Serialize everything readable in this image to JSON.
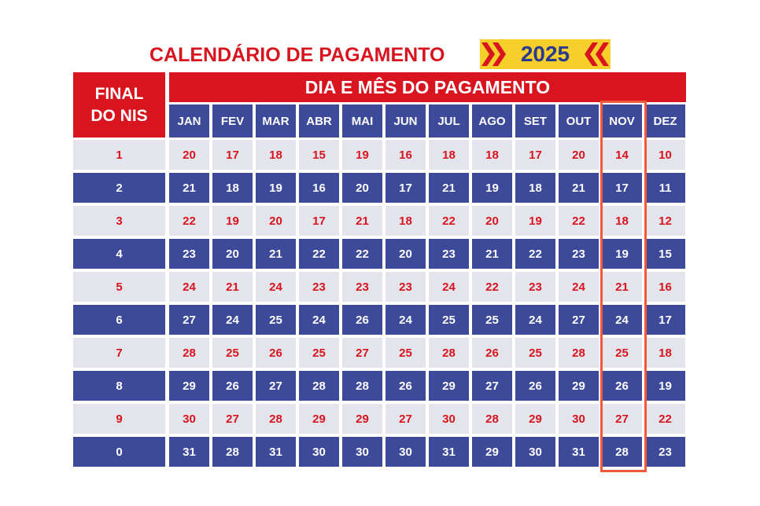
{
  "header": {
    "title": "CALENDÁRIO DE PAGAMENTO",
    "year": "2025"
  },
  "table": {
    "corner": "FINAL DO NIS",
    "group_header": "DIA E MÊS DO PAGAMENTO",
    "months": [
      "JAN",
      "FEV",
      "MAR",
      "ABR",
      "MAI",
      "JUN",
      "JUL",
      "AGO",
      "SET",
      "OUT",
      "NOV",
      "DEZ"
    ],
    "rows": [
      [
        1,
        20,
        17,
        18,
        15,
        19,
        16,
        18,
        18,
        17,
        20,
        14,
        10
      ],
      [
        2,
        21,
        18,
        19,
        16,
        20,
        17,
        21,
        19,
        18,
        21,
        17,
        11
      ],
      [
        3,
        22,
        19,
        20,
        17,
        21,
        18,
        22,
        20,
        19,
        22,
        18,
        12
      ],
      [
        4,
        23,
        20,
        21,
        22,
        22,
        20,
        23,
        21,
        22,
        23,
        19,
        15
      ],
      [
        5,
        24,
        21,
        24,
        23,
        23,
        23,
        24,
        22,
        23,
        24,
        21,
        16
      ],
      [
        6,
        27,
        24,
        25,
        24,
        26,
        24,
        25,
        25,
        24,
        27,
        24,
        17
      ],
      [
        7,
        28,
        25,
        26,
        25,
        27,
        25,
        28,
        26,
        25,
        28,
        25,
        18
      ],
      [
        8,
        29,
        26,
        27,
        28,
        28,
        26,
        29,
        27,
        26,
        29,
        26,
        19
      ],
      [
        9,
        30,
        27,
        28,
        29,
        29,
        27,
        30,
        28,
        29,
        30,
        27,
        22
      ],
      [
        0,
        31,
        28,
        31,
        30,
        30,
        30,
        31,
        29,
        30,
        31,
        28,
        23
      ]
    ]
  }
}
